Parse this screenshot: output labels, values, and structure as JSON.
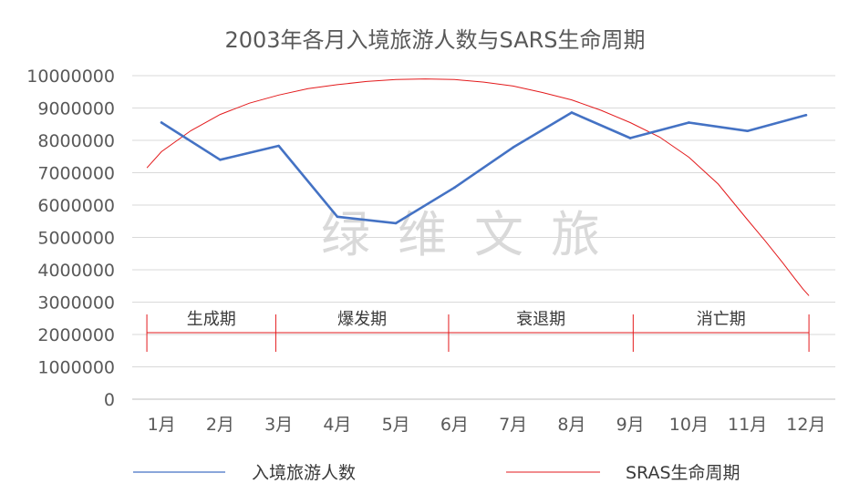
{
  "chart_data": {
    "type": "line",
    "title": "2003年各月入境旅游人数与SARS生命周期",
    "categories": [
      "1月",
      "2月",
      "3月",
      "4月",
      "5月",
      "6月",
      "7月",
      "8月",
      "9月",
      "10月",
      "11月",
      "12月"
    ],
    "y_ticks": [
      "0",
      "1000000",
      "2000000",
      "3000000",
      "4000000",
      "5000000",
      "6000000",
      "7000000",
      "8000000",
      "9000000",
      "10000000"
    ],
    "ylim": [
      0,
      10000000
    ],
    "grid": true,
    "legend_position": "bottom",
    "series": [
      {
        "name": "入境旅游人数",
        "color": "#4472c4",
        "values": [
          8550000,
          7400000,
          7830000,
          5640000,
          5440000,
          6540000,
          7780000,
          8860000,
          8070000,
          8550000,
          8290000,
          8780000
        ]
      }
    ],
    "lifecycle_curve": {
      "name": "SRAS生命周期",
      "color": "#e31a1c",
      "x": [
        0.75,
        1.0,
        1.5,
        2.0,
        2.5,
        3.0,
        3.5,
        4.0,
        4.5,
        5.0,
        5.5,
        6.0,
        6.5,
        7.0,
        7.5,
        8.0,
        8.5,
        9.0,
        9.5,
        10.0,
        10.5,
        11.0,
        11.3,
        11.6,
        11.8,
        11.95,
        12.05
      ],
      "y": [
        7150000,
        7650000,
        8300000,
        8800000,
        9150000,
        9400000,
        9600000,
        9720000,
        9820000,
        9880000,
        9900000,
        9880000,
        9800000,
        9680000,
        9480000,
        9250000,
        8930000,
        8550000,
        8100000,
        7480000,
        6650000,
        5550000,
        4900000,
        4220000,
        3750000,
        3400000,
        3200000
      ]
    },
    "phases": [
      {
        "label": "生成期",
        "start": 0.75,
        "end": 2.95
      },
      {
        "label": "爆发期",
        "start": 2.95,
        "end": 5.9
      },
      {
        "label": "衰退期",
        "start": 5.9,
        "end": 9.05
      },
      {
        "label": "消亡期",
        "start": 9.05,
        "end": 12.05
      }
    ],
    "watermark": "绿维文旅"
  }
}
